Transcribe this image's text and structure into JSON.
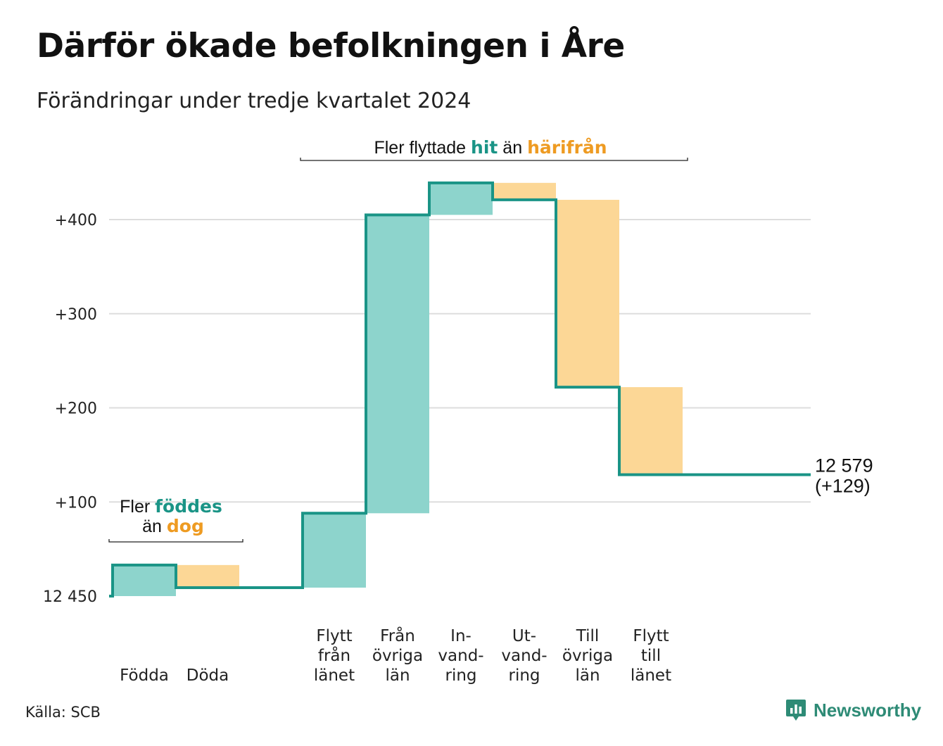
{
  "header": {
    "title": "Därför ökade befolkningen i Åre",
    "subtitle": "Förändringar under tredje kvartalet 2024"
  },
  "colors": {
    "increase": "#8dd4cc",
    "decrease": "#fcd796",
    "line": "#1a9486",
    "teal_text": "#1a9486",
    "orange_text": "#ee9b22",
    "grid": "#dddddd"
  },
  "chart_data": {
    "type": "waterfall",
    "title": "Därför ökade befolkningen i Åre",
    "subtitle": "Förändringar under tredje kvartalet 2024",
    "base": 12450,
    "base_label": "12 450",
    "ylim": [
      0,
      440
    ],
    "yticks": [
      {
        "value": 0,
        "label": "12 450"
      },
      {
        "value": 100,
        "label": "+100"
      },
      {
        "value": 200,
        "label": "+200"
      },
      {
        "value": 300,
        "label": "+300"
      },
      {
        "value": 400,
        "label": "+400"
      }
    ],
    "steps": [
      {
        "label": [
          "Födda"
        ],
        "change": 33,
        "kind": "increase"
      },
      {
        "label": [
          "Döda"
        ],
        "change": -24,
        "kind": "decrease"
      },
      {
        "label": [],
        "change": 0,
        "kind": "gap"
      },
      {
        "label": [
          "Flytt",
          "från",
          "länet"
        ],
        "change": 79,
        "kind": "increase"
      },
      {
        "label": [
          "Från",
          "övriga",
          "län"
        ],
        "change": 317,
        "kind": "increase"
      },
      {
        "label": [
          "In-",
          "vand-",
          "ring"
        ],
        "change": 34,
        "kind": "increase"
      },
      {
        "label": [
          "Ut-",
          "vand-",
          "ring"
        ],
        "change": -18,
        "kind": "decrease"
      },
      {
        "label": [
          "Till",
          "övriga",
          "län"
        ],
        "change": -199,
        "kind": "decrease"
      },
      {
        "label": [
          "Flytt",
          "till",
          "länet"
        ],
        "change": -93,
        "kind": "decrease"
      },
      {
        "label": [],
        "change": 0,
        "kind": "gap"
      }
    ],
    "end_value_label": "12 579",
    "end_change_label": "(+129)",
    "grid": true,
    "annotations": [
      {
        "id": "births",
        "prefix": "Fler",
        "highlight1": "föddes",
        "middle": "än",
        "highlight2": "dog",
        "span": [
          0,
          1
        ]
      },
      {
        "id": "moves",
        "prefix": "Fler flyttade",
        "highlight1": "hit",
        "middle": "än",
        "highlight2": "härifrån",
        "span": [
          3,
          8
        ]
      }
    ]
  },
  "footer": {
    "source": "Källa: SCB",
    "brand": "Newsworthy",
    "brand_icon": "bar-chart-speech-bubble-icon"
  }
}
